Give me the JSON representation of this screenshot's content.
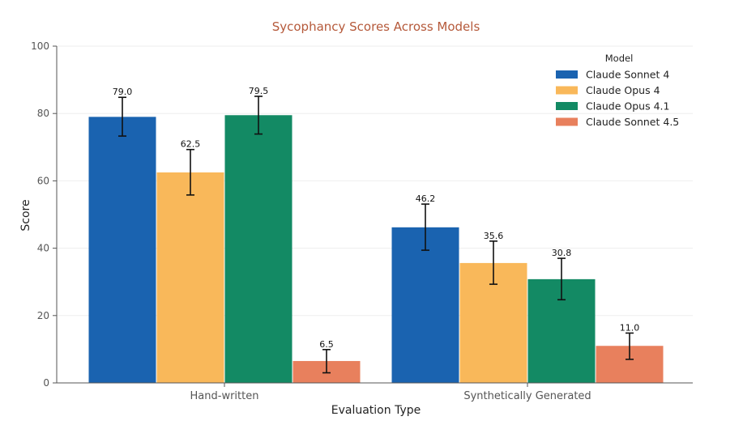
{
  "chart_data": {
    "type": "bar",
    "title": "Sycophancy Scores Across Models",
    "xlabel": "Evaluation Type",
    "ylabel": "Score",
    "ylim": [
      0,
      100
    ],
    "yticks": [
      0,
      20,
      40,
      60,
      80,
      100
    ],
    "grid": true,
    "legend": {
      "title": "Model",
      "position": "top-right"
    },
    "categories": [
      "Hand-written",
      "Synthetically Generated"
    ],
    "series": [
      {
        "name": "Claude Sonnet 4",
        "color": "#1a63b0",
        "values": [
          79.0,
          46.2
        ],
        "value_labels": [
          "79.0",
          "46.2"
        ],
        "error_low": [
          73.3,
          39.4
        ],
        "error_high": [
          84.8,
          53.1
        ]
      },
      {
        "name": "Claude Opus 4",
        "color": "#f9b85a",
        "values": [
          62.5,
          35.6
        ],
        "value_labels": [
          "62.5",
          "35.6"
        ],
        "error_low": [
          55.8,
          29.3
        ],
        "error_high": [
          69.3,
          42.1
        ]
      },
      {
        "name": "Claude Opus 4.1",
        "color": "#138a64",
        "values": [
          79.5,
          30.8
        ],
        "value_labels": [
          "79.5",
          "30.8"
        ],
        "error_low": [
          73.9,
          24.7
        ],
        "error_high": [
          85.1,
          37.0
        ]
      },
      {
        "name": "Claude Sonnet 4.5",
        "color": "#e8805d",
        "values": [
          6.5,
          11.0
        ],
        "value_labels": [
          "6.5",
          "11.0"
        ],
        "error_low": [
          3.0,
          7.0
        ],
        "error_high": [
          9.9,
          14.8
        ]
      }
    ],
    "colors": {
      "title": "#b5593a",
      "axis": "#555555",
      "grid": "#eeeeee",
      "errorbar": "#111111"
    }
  }
}
